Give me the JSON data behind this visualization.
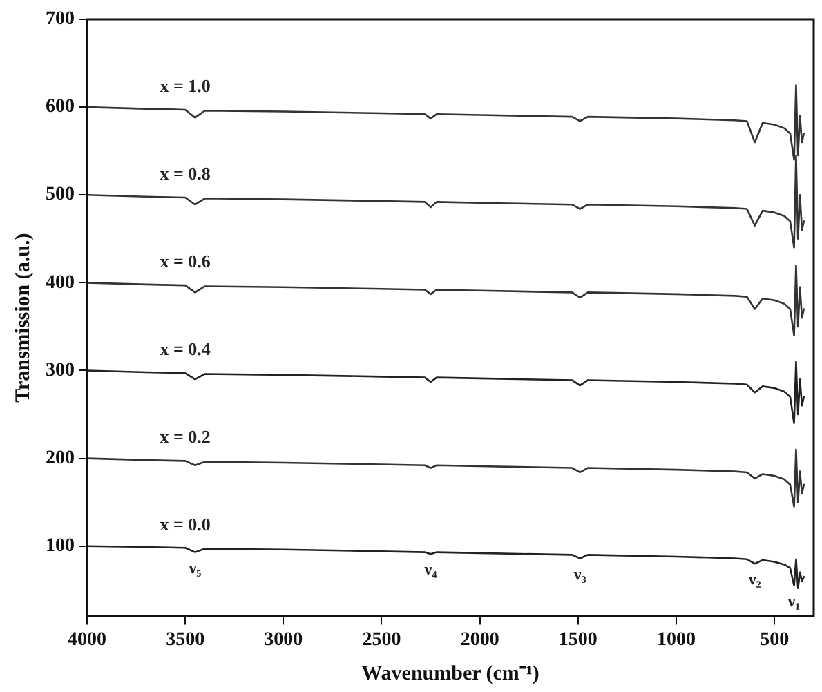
{
  "chart_data": {
    "type": "line",
    "xlabel": "Wavenumber (cm⁻¹)",
    "ylabel": "Transmission (a.u.)",
    "x": [
      4000,
      3700,
      3500,
      3450,
      3400,
      3000,
      2500,
      2280,
      2250,
      2220,
      2000,
      1530,
      1490,
      1450,
      1000,
      700,
      640,
      600,
      560,
      500,
      450,
      420,
      400,
      390,
      380,
      370,
      360,
      350
    ],
    "series": [
      {
        "name": "x = 1.0",
        "color": "#333333",
        "values": [
          600,
          598,
          597,
          588,
          596,
          595,
          593,
          592,
          587,
          592,
          591,
          589,
          584,
          589,
          587,
          585,
          584,
          560,
          582,
          580,
          576,
          570,
          540,
          625,
          545,
          590,
          560,
          570
        ]
      },
      {
        "name": "x = 0.8",
        "color": "#333333",
        "values": [
          500,
          498,
          497,
          489,
          496,
          495,
          493,
          492,
          486,
          492,
          491,
          489,
          484,
          489,
          487,
          485,
          484,
          465,
          482,
          480,
          476,
          470,
          440,
          545,
          450,
          500,
          460,
          470
        ]
      },
      {
        "name": "x = 0.6",
        "color": "#333333",
        "values": [
          400,
          398,
          397,
          389,
          396,
          395,
          393,
          392,
          387,
          392,
          391,
          389,
          383,
          389,
          387,
          385,
          384,
          370,
          382,
          380,
          376,
          370,
          340,
          420,
          350,
          395,
          360,
          370
        ]
      },
      {
        "name": "x = 0.4",
        "color": "#222222",
        "values": [
          300,
          298,
          297,
          290,
          296,
          295,
          293,
          292,
          287,
          292,
          291,
          289,
          283,
          289,
          287,
          285,
          284,
          275,
          282,
          280,
          276,
          270,
          240,
          310,
          250,
          290,
          260,
          270
        ]
      },
      {
        "name": "x = 0.2",
        "color": "#333333",
        "values": [
          200,
          198,
          197,
          192,
          196,
          195,
          193,
          192,
          189,
          192,
          191,
          189,
          184,
          189,
          187,
          185,
          184,
          177,
          182,
          180,
          176,
          170,
          145,
          210,
          150,
          185,
          160,
          170
        ]
      },
      {
        "name": "x = 0.0",
        "color": "#222222",
        "values": [
          100,
          99,
          98,
          93,
          97,
          96,
          94,
          93,
          91,
          93,
          92,
          90,
          86,
          90,
          88,
          86,
          85,
          80,
          84,
          82,
          79,
          75,
          55,
          85,
          52,
          70,
          60,
          65
        ]
      }
    ],
    "xlim": [
      4000,
      300
    ],
    "xticks": [
      4000,
      3500,
      3000,
      2500,
      2000,
      1500,
      1000,
      500
    ],
    "ylim": [
      20,
      700
    ],
    "yticks": [
      100,
      200,
      300,
      400,
      500,
      600,
      700
    ],
    "annotations": [
      {
        "text": "ν₅",
        "x": 3450,
        "y": 93
      },
      {
        "text": "ν₄",
        "x": 2250,
        "y": 91
      },
      {
        "text": "ν₃",
        "x": 1490,
        "y": 86
      },
      {
        "text": "ν₂",
        "x": 600,
        "y": 80
      },
      {
        "text": "ν₁",
        "x": 400,
        "y": 55
      }
    ],
    "grid": false,
    "legend": false,
    "marker": "none",
    "line_style": "solid"
  }
}
